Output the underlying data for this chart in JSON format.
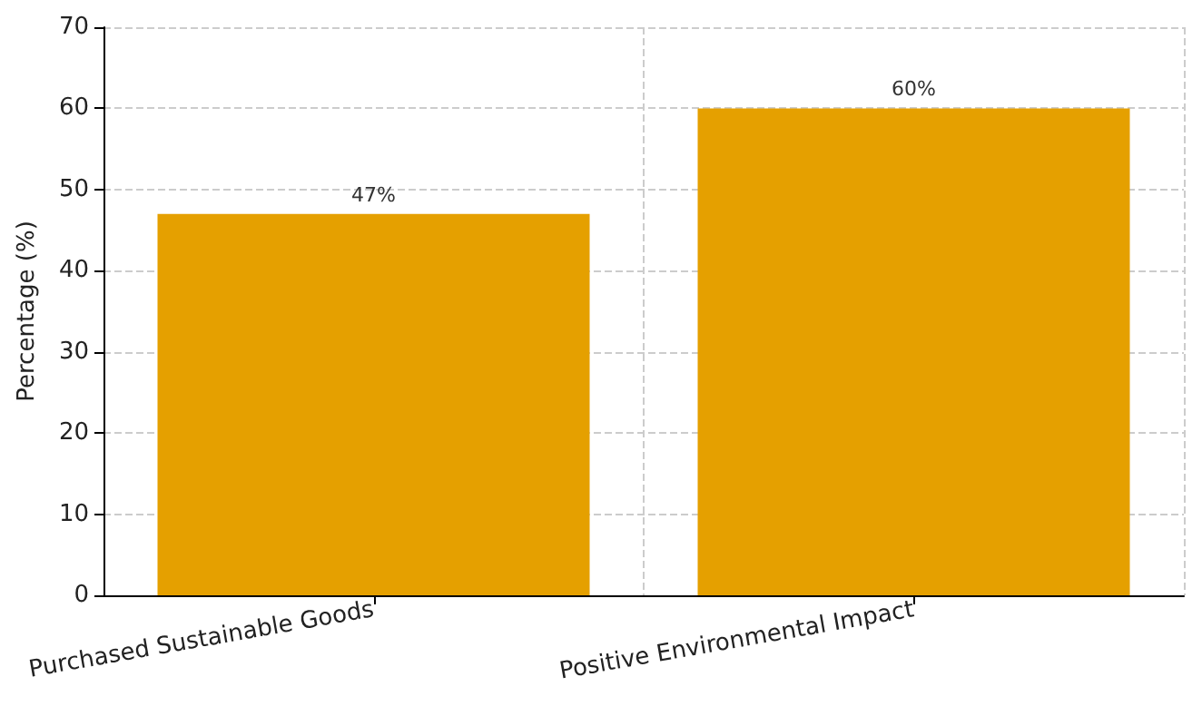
{
  "chart_data": {
    "type": "bar",
    "ylabel": "Percentage (%)",
    "categories": [
      "Purchased Sustainable Goods",
      "Positive Environmental Impact"
    ],
    "values": [
      47,
      60
    ],
    "color": "#e5a000",
    "value_labels": [
      "47%",
      "60%"
    ],
    "ylim": [
      0,
      70
    ],
    "yticks": [
      0,
      10,
      20,
      30,
      40,
      50,
      60,
      70
    ],
    "grid": true
  }
}
